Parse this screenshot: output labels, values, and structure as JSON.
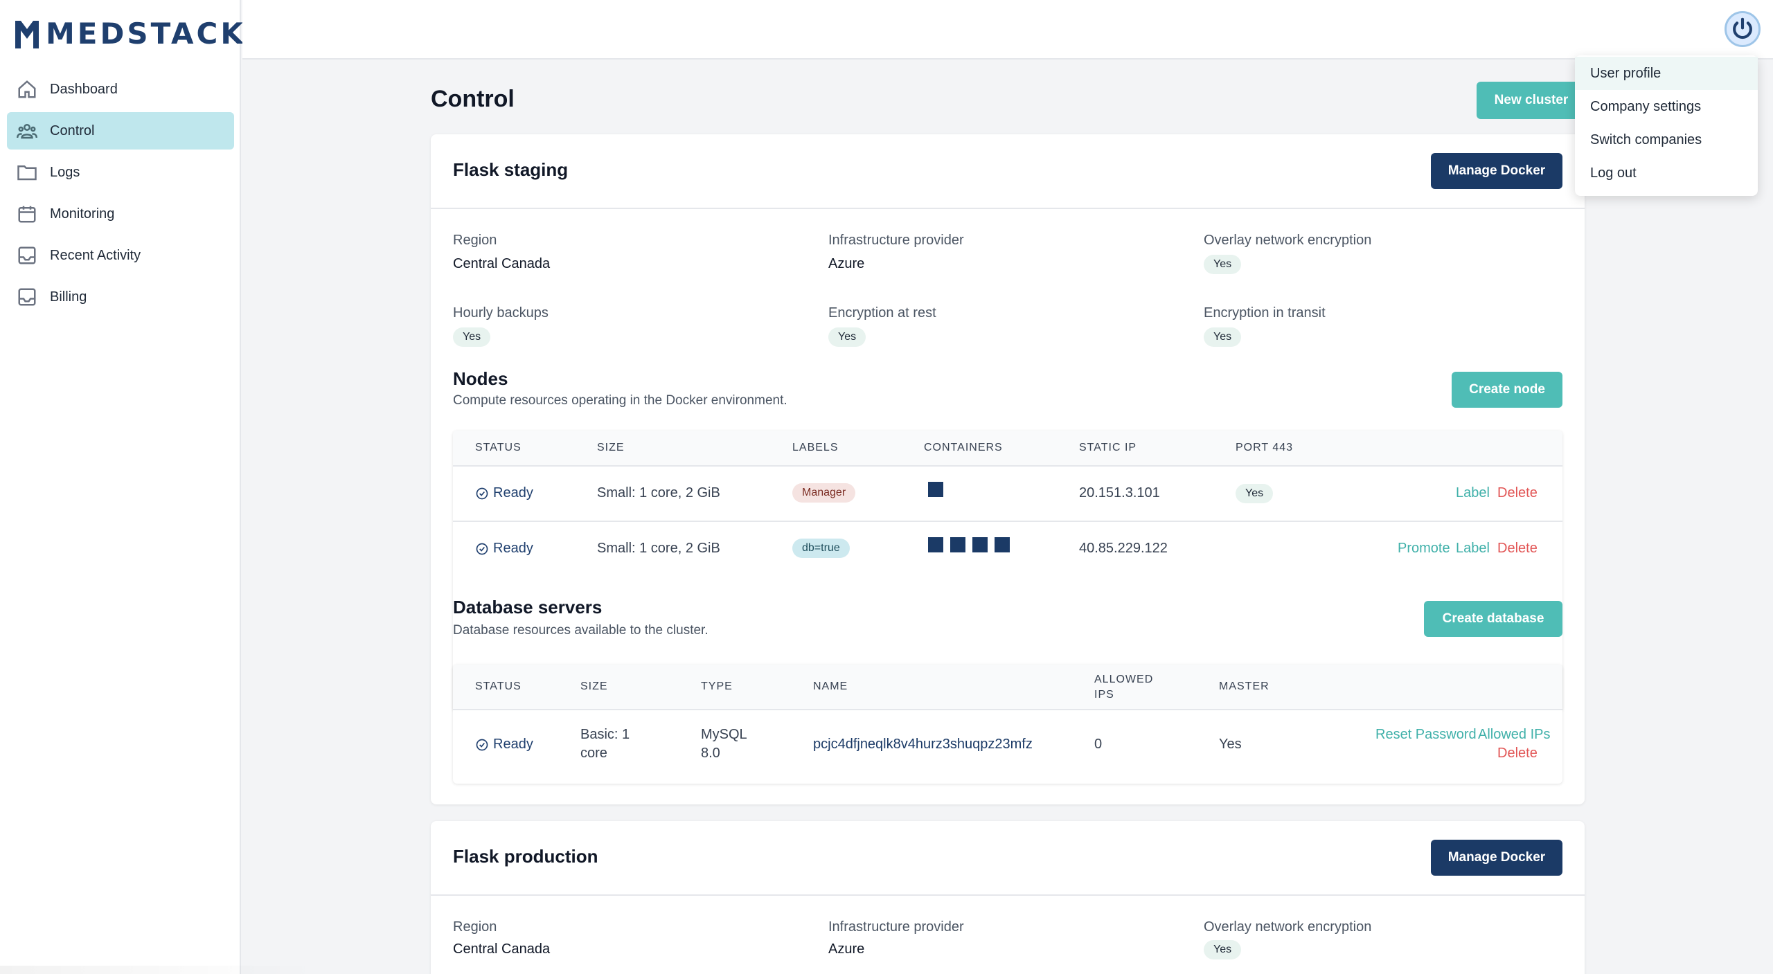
{
  "brand": {
    "name": "MEDSTACK"
  },
  "sidebar": {
    "items": [
      {
        "label": "Dashboard",
        "icon": "home-icon"
      },
      {
        "label": "Control",
        "icon": "users-icon"
      },
      {
        "label": "Logs",
        "icon": "folder-icon"
      },
      {
        "label": "Monitoring",
        "icon": "calendar-icon"
      },
      {
        "label": "Recent Activity",
        "icon": "inbox-icon"
      },
      {
        "label": "Billing",
        "icon": "inbox-icon"
      }
    ]
  },
  "user_menu": {
    "items": [
      "User profile",
      "Company settings",
      "Switch companies",
      "Log out"
    ]
  },
  "page": {
    "title": "Control",
    "new_cluster_label": "New cluster"
  },
  "clusters": [
    {
      "name": "Flask staging",
      "manage_label": "Manage Docker",
      "fields": {
        "region_label": "Region",
        "region": "Central Canada",
        "provider_label": "Infrastructure provider",
        "provider": "Azure",
        "overlay_label": "Overlay network encryption",
        "overlay": "Yes",
        "backups_label": "Hourly backups",
        "backups": "Yes",
        "rest_label": "Encryption at rest",
        "rest": "Yes",
        "transit_label": "Encryption in transit",
        "transit": "Yes"
      },
      "nodes": {
        "title": "Nodes",
        "subtitle": "Compute resources operating in the Docker environment.",
        "create_label": "Create node",
        "headers": [
          "STATUS",
          "SIZE",
          "LABELS",
          "CONTAINERS",
          "STATIC IP",
          "PORT 443"
        ],
        "rows": [
          {
            "status": "Ready",
            "size": "Small: 1 core, 2 GiB",
            "label": "Manager",
            "containers": 1,
            "ip": "20.151.3.101",
            "port443": "Yes",
            "actions": [
              "Label",
              "Delete"
            ]
          },
          {
            "status": "Ready",
            "size": "Small: 1 core, 2 GiB",
            "label": "db=true",
            "containers": 4,
            "ip": "40.85.229.122",
            "port443": "",
            "actions": [
              "Promote",
              "Label",
              "Delete"
            ]
          }
        ]
      },
      "databases": {
        "title": "Database servers",
        "subtitle": "Database resources available to the cluster.",
        "create_label": "Create database",
        "headers": [
          "STATUS",
          "SIZE",
          "TYPE",
          "NAME",
          "ALLOWED IPS",
          "MASTER"
        ],
        "rows": [
          {
            "status": "Ready",
            "size_line1": "Basic: 1",
            "size_line2": "core",
            "type_line1": "MySQL",
            "type_line2": "8.0",
            "name": "pcjc4dfjneqlk8v4hurz3shuqpz23mfz",
            "allowed_ips": "0",
            "master": "Yes",
            "actions": [
              "Reset Password",
              "Allowed IPs",
              "Delete"
            ]
          }
        ]
      }
    },
    {
      "name": "Flask production",
      "manage_label": "Manage Docker",
      "fields": {
        "region_label": "Region",
        "region": "Central Canada",
        "provider_label": "Infrastructure provider",
        "provider": "Azure",
        "overlay_label": "Overlay network encryption",
        "overlay": "Yes"
      }
    }
  ],
  "colors": {
    "accent": "#4fbdb6",
    "navy": "#1b3a66",
    "danger": "#e25555",
    "active_nav": "#bfe7ed"
  }
}
